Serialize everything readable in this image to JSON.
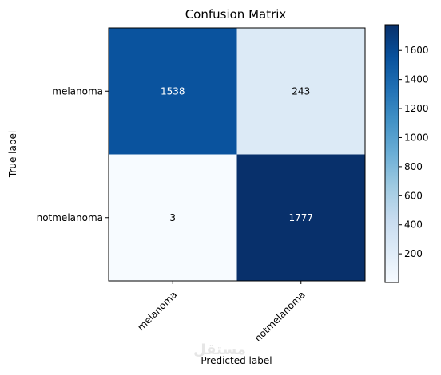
{
  "chart_data": {
    "type": "heatmap",
    "title": "Confusion Matrix",
    "xlabel": "Predicted label",
    "ylabel": "True label",
    "x_categories": [
      "melanoma",
      "notmelanoma"
    ],
    "y_categories": [
      "melanoma",
      "notmelanoma"
    ],
    "values": [
      [
        1538,
        243
      ],
      [
        3,
        1777
      ]
    ],
    "colormap": "Blues",
    "colorbar": {
      "min": 3,
      "max": 1777,
      "ticks": [
        200,
        400,
        600,
        800,
        1000,
        1200,
        1400,
        1600
      ]
    },
    "grid": false
  },
  "watermark": "مستقل"
}
